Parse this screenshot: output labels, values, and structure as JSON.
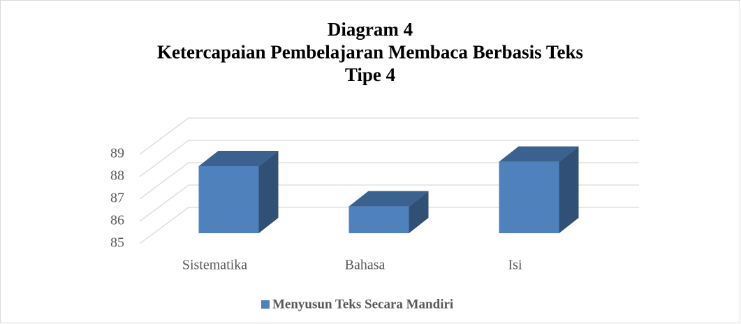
{
  "chart_data": {
    "type": "bar3d",
    "title": [
      "Diagram 4",
      "Ketercapaian Pembelajaran Membaca Berbasis Teks",
      "Tipe 4"
    ],
    "categories": [
      "Sistematika",
      "Bahasa",
      "Isi"
    ],
    "series": [
      {
        "name": "Menyusun Teks Secara Mandiri",
        "color": "#4f81bd",
        "values": [
          88.0,
          86.2,
          88.2
        ]
      }
    ],
    "ylim": [
      85,
      89
    ],
    "yticks": [
      85,
      86,
      87,
      88,
      89
    ],
    "grid": true,
    "legend": "bottom"
  }
}
